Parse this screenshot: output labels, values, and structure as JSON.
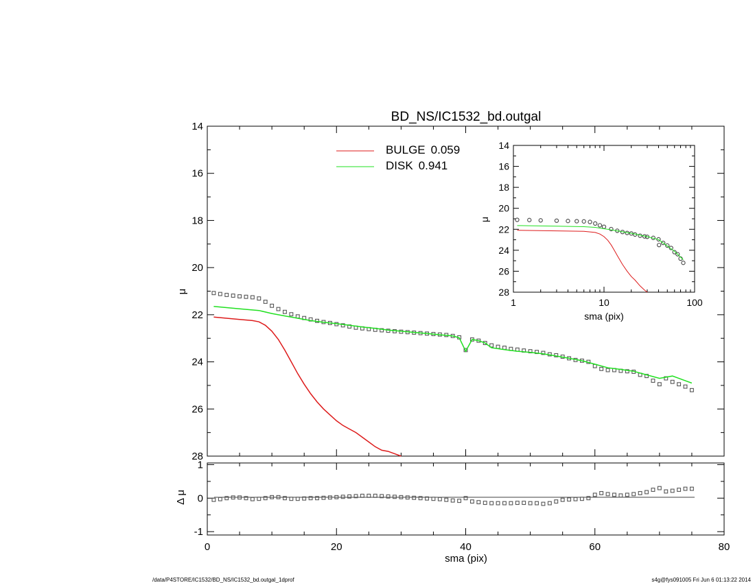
{
  "chart_data": [
    {
      "type": "scatter",
      "panel": "main",
      "title": "BD_NS/IC1532_bd.outgal",
      "ylabel": "μ",
      "xlim": [
        0,
        80
      ],
      "ylim": [
        28,
        14
      ],
      "y_reversed": true,
      "xticks": [
        0,
        20,
        40,
        60,
        80
      ],
      "yticks": [
        14,
        16,
        18,
        20,
        22,
        24,
        26,
        28
      ],
      "legend": [
        {
          "label": "BULGE",
          "value": "0.059",
          "color": "#dd1a1a"
        },
        {
          "label": "DISK",
          "value": "0.941",
          "color": "#1fe01f"
        }
      ],
      "legend_position": "top-center",
      "series": [
        {
          "name": "data",
          "style": "open-squares",
          "color": "#555555",
          "x": [
            1,
            2,
            3,
            4,
            5,
            6,
            7,
            8,
            9,
            10,
            11,
            12,
            13,
            14,
            15,
            16,
            17,
            18,
            19,
            20,
            21,
            22,
            23,
            24,
            25,
            26,
            27,
            28,
            29,
            30,
            31,
            32,
            33,
            34,
            35,
            36,
            37,
            38,
            39,
            40,
            41,
            42,
            43,
            44,
            45,
            46,
            47,
            48,
            49,
            50,
            51,
            52,
            53,
            54,
            55,
            56,
            57,
            58,
            59,
            60,
            61,
            62,
            63,
            64,
            65,
            66,
            67,
            68,
            69,
            70,
            71,
            72,
            73,
            74,
            75
          ],
          "y": [
            21.08,
            21.12,
            21.16,
            21.19,
            21.22,
            21.24,
            21.26,
            21.31,
            21.45,
            21.62,
            21.76,
            21.88,
            21.98,
            22.07,
            22.14,
            22.2,
            22.26,
            22.31,
            22.35,
            22.4,
            22.45,
            22.5,
            22.55,
            22.58,
            22.61,
            22.64,
            22.66,
            22.68,
            22.7,
            22.72,
            22.74,
            22.76,
            22.78,
            22.8,
            22.82,
            22.84,
            22.86,
            22.9,
            22.96,
            23.5,
            23.05,
            23.1,
            23.2,
            23.3,
            23.36,
            23.4,
            23.45,
            23.48,
            23.52,
            23.55,
            23.58,
            23.62,
            23.68,
            23.72,
            23.78,
            23.85,
            23.92,
            23.95,
            24.0,
            24.18,
            24.3,
            24.35,
            24.35,
            24.38,
            24.4,
            24.42,
            24.55,
            24.6,
            24.8,
            24.95,
            24.7,
            24.85,
            24.95,
            25.05,
            25.2
          ]
        },
        {
          "name": "BULGE",
          "style": "line",
          "color": "#dd1a1a",
          "x": [
            1,
            3,
            5,
            7,
            8,
            9,
            10,
            11,
            12,
            13,
            14,
            15,
            16,
            17,
            18,
            19,
            20,
            21,
            22,
            23,
            24,
            25,
            26,
            27,
            28,
            29,
            30
          ],
          "y": [
            22.1,
            22.15,
            22.2,
            22.25,
            22.3,
            22.45,
            22.7,
            23.05,
            23.5,
            24.0,
            24.5,
            24.95,
            25.35,
            25.7,
            26.0,
            26.25,
            26.5,
            26.7,
            26.85,
            27.0,
            27.2,
            27.4,
            27.6,
            27.75,
            27.8,
            27.9,
            28.0
          ]
        },
        {
          "name": "DISK",
          "style": "line",
          "color": "#1fe01f",
          "x": [
            1,
            5,
            8,
            10,
            12,
            14,
            16,
            18,
            20,
            22,
            24,
            26,
            28,
            30,
            32,
            34,
            36,
            38,
            39,
            40,
            41,
            42,
            43,
            44,
            46,
            48,
            50,
            52,
            54,
            56,
            58,
            60,
            62,
            64,
            66,
            68,
            70,
            72,
            74,
            75
          ],
          "y": [
            21.65,
            21.75,
            21.82,
            21.95,
            22.05,
            22.15,
            22.25,
            22.32,
            22.38,
            22.45,
            22.52,
            22.58,
            22.65,
            22.7,
            22.75,
            22.8,
            22.85,
            22.9,
            22.98,
            23.55,
            23.05,
            23.1,
            23.2,
            23.4,
            23.48,
            23.55,
            23.6,
            23.66,
            23.75,
            23.85,
            23.95,
            24.1,
            24.25,
            24.32,
            24.4,
            24.55,
            24.7,
            24.6,
            24.8,
            24.9
          ]
        }
      ]
    },
    {
      "type": "scatter",
      "panel": "residual",
      "xlabel": "sma (pix)",
      "ylabel": "Δ μ",
      "xlim": [
        0,
        80
      ],
      "ylim": [
        -1.1,
        1.05
      ],
      "xticks": [
        0,
        20,
        40,
        60,
        80
      ],
      "yticks": [
        1,
        0,
        -1
      ],
      "series": [
        {
          "name": "residual",
          "style": "open-squares",
          "color": "#555555",
          "x": [
            1,
            2,
            3,
            4,
            5,
            6,
            7,
            8,
            9,
            10,
            11,
            12,
            13,
            14,
            15,
            16,
            17,
            18,
            19,
            20,
            21,
            22,
            23,
            24,
            25,
            26,
            27,
            28,
            29,
            30,
            31,
            32,
            33,
            34,
            35,
            36,
            37,
            38,
            39,
            40,
            41,
            42,
            43,
            44,
            45,
            46,
            47,
            48,
            49,
            50,
            51,
            52,
            53,
            54,
            55,
            56,
            57,
            58,
            59,
            60,
            61,
            62,
            63,
            64,
            65,
            66,
            67,
            68,
            69,
            70,
            71,
            72,
            73,
            74,
            75
          ],
          "y": [
            -0.05,
            -0.03,
            0.0,
            0.02,
            0.02,
            0.0,
            -0.03,
            -0.02,
            0.0,
            0.03,
            0.03,
            0.0,
            -0.02,
            -0.02,
            -0.01,
            0.0,
            0.0,
            0.01,
            0.02,
            0.03,
            0.04,
            0.05,
            0.06,
            0.07,
            0.07,
            0.07,
            0.06,
            0.05,
            0.04,
            0.03,
            0.02,
            0.01,
            0.0,
            -0.01,
            -0.02,
            -0.03,
            -0.05,
            -0.07,
            -0.08,
            0.0,
            -0.1,
            -0.12,
            -0.14,
            -0.15,
            -0.15,
            -0.15,
            -0.15,
            -0.14,
            -0.14,
            -0.15,
            -0.15,
            -0.17,
            -0.15,
            -0.1,
            -0.05,
            -0.04,
            -0.03,
            -0.02,
            0.0,
            0.1,
            0.15,
            0.12,
            0.1,
            0.08,
            0.1,
            0.12,
            0.15,
            0.18,
            0.25,
            0.3,
            0.2,
            0.22,
            0.25,
            0.28,
            0.28
          ]
        }
      ]
    },
    {
      "type": "scatter",
      "panel": "inset",
      "xlabel": "sma (pix)",
      "ylabel": "μ",
      "x_scale": "log",
      "xlim": [
        1,
        100
      ],
      "ylim": [
        28,
        14
      ],
      "y_reversed": true,
      "xticks": [
        1,
        10,
        100
      ],
      "yticks": [
        14,
        16,
        18,
        20,
        22,
        24,
        26,
        28
      ],
      "series": [
        {
          "name": "data",
          "style": "open-circles",
          "color": "#444444",
          "x": [
            1.1,
            1.5,
            2,
            3,
            4,
            5,
            6,
            7,
            8,
            9,
            10,
            12,
            14,
            16,
            18,
            20,
            22,
            25,
            28,
            30,
            35,
            40,
            40.5,
            45,
            50,
            55,
            60,
            65,
            70,
            75
          ],
          "y": [
            21.1,
            21.12,
            21.15,
            21.18,
            21.21,
            21.23,
            21.25,
            21.3,
            21.45,
            21.62,
            21.76,
            21.98,
            22.14,
            22.26,
            22.35,
            22.4,
            22.5,
            22.61,
            22.68,
            22.72,
            22.82,
            22.96,
            23.5,
            23.3,
            23.55,
            23.78,
            24.18,
            24.38,
            24.8,
            25.2
          ]
        },
        {
          "name": "BULGE",
          "style": "line",
          "color": "#dd1a1a",
          "x": [
            1.1,
            3,
            6,
            8,
            9,
            10,
            11,
            12,
            13,
            14,
            16,
            18,
            20,
            22,
            25,
            28,
            30
          ],
          "y": [
            22.1,
            22.15,
            22.2,
            22.3,
            22.45,
            22.7,
            23.05,
            23.5,
            24.0,
            24.5,
            25.35,
            26.0,
            26.5,
            26.85,
            27.4,
            27.8,
            28.0
          ]
        },
        {
          "name": "DISK",
          "style": "line",
          "color": "#1fe01f",
          "x": [
            1.1,
            3,
            6,
            8,
            10,
            12,
            15,
            20,
            30,
            40,
            50,
            60,
            75
          ],
          "y": [
            21.65,
            21.7,
            21.75,
            21.82,
            21.95,
            22.05,
            22.2,
            22.38,
            22.7,
            22.98,
            23.6,
            24.1,
            24.9
          ]
        }
      ]
    }
  ],
  "footer": {
    "left": "/data/P4STORE/IC1532/BD_NS/IC1532_bd.outgal_1dprof",
    "right": "s4g@fys091005  Fri Jun  6 01:13:22 2014"
  }
}
